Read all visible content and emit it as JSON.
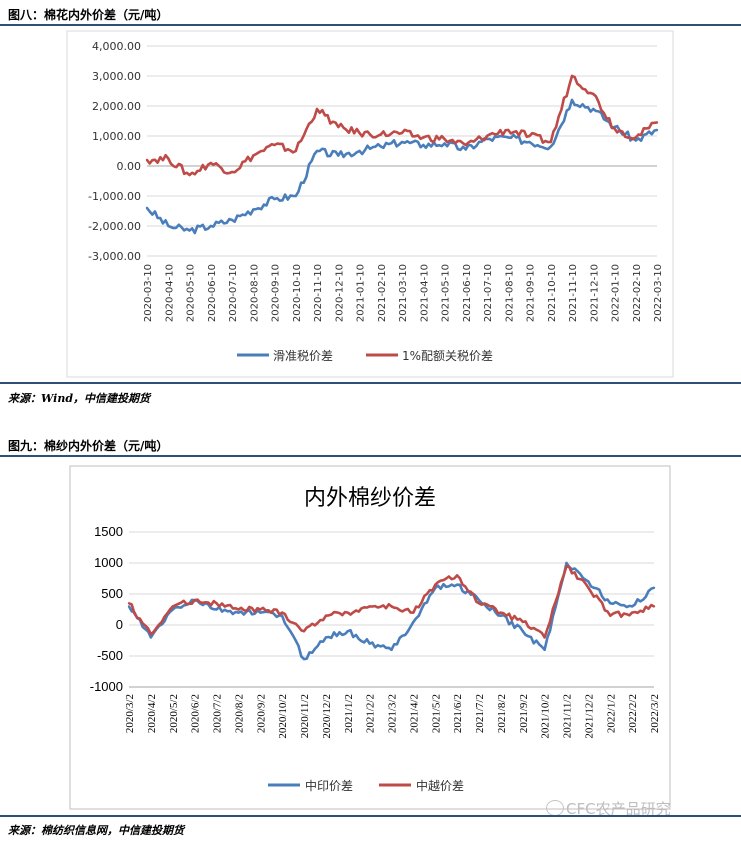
{
  "fig8": {
    "title": "图八：棉花内外价差（元/吨）",
    "source": "来源：Wind，中信建投期货"
  },
  "fig9": {
    "title": "图九：棉纱内外价差（元/吨）",
    "source": "来源：棉纺织信息网，中信建投期货"
  },
  "watermark": "CFC农产品研究",
  "colors": {
    "blue": "#4a7ebb",
    "red": "#be4b48",
    "rule": "#2f4f78"
  },
  "chart_data": [
    {
      "type": "line",
      "title": "",
      "ylim": [
        -3000,
        4000
      ],
      "ytick_labels": [
        "4,000.00",
        "3,000.00",
        "2,000.00",
        "1,000.00",
        "0.00",
        "-1,000.00",
        "-2,000.00",
        "-3,000.00"
      ],
      "x": [
        "2020-03-10",
        "2020-04-10",
        "2020-05-10",
        "2020-06-10",
        "2020-07-10",
        "2020-08-10",
        "2020-09-10",
        "2020-10-10",
        "2020-11-10",
        "2020-12-10",
        "2021-01-10",
        "2021-02-10",
        "2021-03-10",
        "2021-04-10",
        "2021-05-10",
        "2021-06-10",
        "2021-07-10",
        "2021-08-10",
        "2021-09-10",
        "2021-10-10",
        "2021-11-10",
        "2021-12-10",
        "2022-01-10",
        "2022-02-10",
        "2022-03-10"
      ],
      "grid": true,
      "legend": "bottom",
      "series": [
        {
          "name": "滑准税价差",
          "color": "#4a7ebb",
          "values": [
            -1400,
            -2000,
            -2150,
            -2000,
            -1800,
            -1450,
            -1100,
            -1000,
            500,
            350,
            500,
            650,
            800,
            700,
            750,
            550,
            900,
            950,
            800,
            650,
            2200,
            1900,
            1300,
            850,
            1200
          ]
        },
        {
          "name": "1%配额关税价差",
          "color": "#be4b48",
          "values": [
            200,
            250,
            -300,
            100,
            -200,
            350,
            700,
            500,
            1900,
            1300,
            1100,
            1050,
            1100,
            950,
            900,
            700,
            1000,
            1200,
            1000,
            800,
            3000,
            2400,
            1250,
            950,
            1450
          ]
        }
      ]
    },
    {
      "type": "line",
      "title": "内外棉纱价差",
      "ylim": [
        -1000,
        1500
      ],
      "ytick_labels": [
        "1500",
        "1000",
        "500",
        "0",
        "-500",
        "-1000"
      ],
      "x": [
        "2020/3/2",
        "2020/4/2",
        "2020/5/2",
        "2020/6/2",
        "2020/7/2",
        "2020/8/2",
        "2020/9/2",
        "2020/10/2",
        "2020/11/2",
        "2020/12/2",
        "2021/1/2",
        "2021/2/2",
        "2021/3/2",
        "2021/4/2",
        "2021/5/2",
        "2021/6/2",
        "2021/7/2",
        "2021/8/2",
        "2021/9/2",
        "2021/10/2",
        "2021/11/2",
        "2021/12/2",
        "2022/1/2",
        "2022/2/2",
        "2022/3/2"
      ],
      "grid": true,
      "legend": "bottom",
      "series": [
        {
          "name": "中印价差",
          "color": "#4a7ebb",
          "values": [
            300,
            -200,
            250,
            400,
            250,
            200,
            200,
            150,
            -550,
            -200,
            -100,
            -300,
            -400,
            50,
            600,
            650,
            400,
            150,
            -100,
            -400,
            1000,
            700,
            350,
            300,
            600
          ]
        },
        {
          "name": "中越价差",
          "color": "#be4b48",
          "values": [
            350,
            -150,
            300,
            400,
            350,
            250,
            250,
            200,
            -100,
            150,
            200,
            300,
            300,
            200,
            650,
            800,
            350,
            200,
            50,
            -200,
            950,
            600,
            150,
            200,
            300
          ]
        }
      ]
    }
  ]
}
